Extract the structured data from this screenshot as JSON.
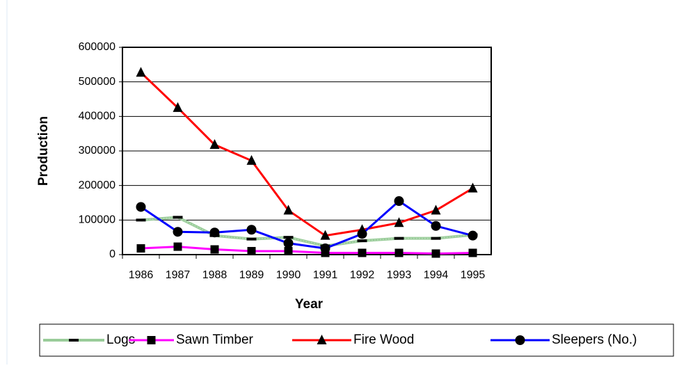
{
  "chart_data": {
    "type": "line",
    "x_label": "Year",
    "y_label": "Production",
    "categories": [
      "1986",
      "1987",
      "1988",
      "1989",
      "1990",
      "1991",
      "1992",
      "1993",
      "1994",
      "1995"
    ],
    "series": [
      {
        "name": "Logs",
        "color": "#99cc99",
        "marker": "dash",
        "values": [
          100000,
          108000,
          55000,
          45000,
          50000,
          25000,
          40000,
          47000,
          47000,
          57000
        ]
      },
      {
        "name": "Sawn Timber",
        "color": "#ff00ff",
        "marker": "square",
        "values": [
          18000,
          23000,
          15000,
          10000,
          10000,
          5000,
          5000,
          5000,
          3000,
          5000
        ]
      },
      {
        "name": "Fire Wood",
        "color": "#ff0000",
        "marker": "triangle",
        "values": [
          527000,
          425000,
          318000,
          272000,
          128000,
          55000,
          72000,
          92000,
          128000,
          192000
        ]
      },
      {
        "name": "Sleepers (No.)",
        "color": "#0000ff",
        "marker": "circle",
        "values": [
          138000,
          66000,
          64000,
          72000,
          33000,
          18000,
          60000,
          155000,
          83000,
          55000
        ]
      }
    ],
    "ylim": [
      0,
      600000
    ],
    "yticks": [
      0,
      100000,
      200000,
      300000,
      400000,
      500000,
      600000
    ],
    "grid": true,
    "legend": "bottom"
  }
}
